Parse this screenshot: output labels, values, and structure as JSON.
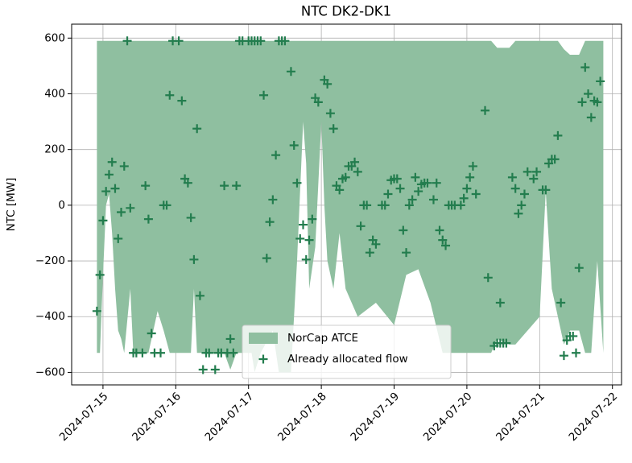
{
  "chart_data": {
    "type": "area",
    "title": "NTC DK2-DK1",
    "ylabel": "NTC [MW]",
    "xlim": [
      "2024-07-14 13:40",
      "2024-07-22 03:00"
    ],
    "ylim": [
      -645,
      650
    ],
    "xticks": [
      "2024-07-15",
      "2024-07-16",
      "2024-07-17",
      "2024-07-18",
      "2024-07-19",
      "2024-07-20",
      "2024-07-21",
      "2024-07-22"
    ],
    "yticks": [
      {
        "value": -600,
        "label": "−600"
      },
      {
        "value": -400,
        "label": "−400"
      },
      {
        "value": -200,
        "label": "−200"
      },
      0,
      200,
      400,
      600
    ],
    "grid": true,
    "legend": "lower center",
    "series": [
      {
        "name": "NorCap ATCE",
        "type": "area",
        "color": "#8fbfa0",
        "x": [
          "2024-07-14 22:00",
          "2024-07-14 23:00",
          "2024-07-15 00:00",
          "2024-07-15 01:00",
          "2024-07-15 02:00",
          "2024-07-15 03:00",
          "2024-07-15 04:00",
          "2024-07-15 05:00",
          "2024-07-15 06:00",
          "2024-07-15 07:00",
          "2024-07-15 09:00",
          "2024-07-15 10:00",
          "2024-07-15 15:00",
          "2024-07-15 18:00",
          "2024-07-15 20:00",
          "2024-07-15 22:00",
          "2024-07-16 05:00",
          "2024-07-16 06:00",
          "2024-07-16 07:00",
          "2024-07-16 16:00",
          "2024-07-16 18:00",
          "2024-07-16 20:00",
          "2024-07-17 01:00",
          "2024-07-17 02:00",
          "2024-07-17 04:00",
          "2024-07-17 08:00",
          "2024-07-17 10:00",
          "2024-07-17 14:00",
          "2024-07-17 16:00",
          "2024-07-17 18:00",
          "2024-07-17 19:00",
          "2024-07-17 20:00",
          "2024-07-17 22:00",
          "2024-07-18 00:00",
          "2024-07-18 01:00",
          "2024-07-18 02:00",
          "2024-07-18 04:00",
          "2024-07-18 06:00",
          "2024-07-18 08:00",
          "2024-07-18 12:00",
          "2024-07-18 18:00",
          "2024-07-19 00:00",
          "2024-07-19 04:00",
          "2024-07-19 08:00",
          "2024-07-19 12:00",
          "2024-07-19 16:00",
          "2024-07-20 08:00",
          "2024-07-20 10:00",
          "2024-07-20 14:00",
          "2024-07-20 16:00",
          "2024-07-21 00:00",
          "2024-07-21 02:00",
          "2024-07-21 04:00",
          "2024-07-21 06:00",
          "2024-07-21 08:00",
          "2024-07-21 10:00",
          "2024-07-21 13:00",
          "2024-07-21 15:00",
          "2024-07-21 17:00",
          "2024-07-21 19:00",
          "2024-07-21 21:00"
        ],
        "upper": [
          590,
          590,
          590,
          590,
          590,
          590,
          590,
          590,
          590,
          590,
          590,
          590,
          590,
          590,
          590,
          590,
          590,
          590,
          590,
          590,
          590,
          590,
          590,
          590,
          590,
          590,
          590,
          590,
          590,
          590,
          590,
          590,
          590,
          590,
          590,
          590,
          590,
          590,
          590,
          590,
          590,
          590,
          590,
          590,
          590,
          590,
          590,
          565,
          565,
          590,
          590,
          590,
          590,
          590,
          560,
          540,
          540,
          590,
          590,
          590,
          590
        ],
        "lower": [
          -530,
          -530,
          -250,
          0,
          40,
          -100,
          -300,
          -450,
          -480,
          -530,
          -300,
          -530,
          -530,
          -380,
          -450,
          -530,
          -530,
          -300,
          -530,
          -530,
          -590,
          -530,
          -530,
          -600,
          -530,
          -450,
          -600,
          -600,
          -200,
          300,
          150,
          -300,
          -150,
          300,
          0,
          -200,
          -300,
          -100,
          -300,
          -400,
          -350,
          -430,
          -250,
          -230,
          -350,
          -530,
          -530,
          -480,
          -500,
          -500,
          -400,
          50,
          -300,
          -400,
          -500,
          -450,
          -450,
          -530,
          -530,
          -200,
          -530
        ]
      },
      {
        "name": "Already allocated flow",
        "type": "scatter",
        "color": "#237d4e",
        "x": [
          "2024-07-14 22:00",
          "2024-07-14 23:00",
          "2024-07-15 00:00",
          "2024-07-15 01:00",
          "2024-07-15 02:00",
          "2024-07-15 03:00",
          "2024-07-15 04:00",
          "2024-07-15 05:00",
          "2024-07-15 06:00",
          "2024-07-15 07:00",
          "2024-07-15 08:00",
          "2024-07-15 09:00",
          "2024-07-15 10:00",
          "2024-07-15 11:00",
          "2024-07-15 13:00",
          "2024-07-15 14:00",
          "2024-07-15 15:00",
          "2024-07-15 16:00",
          "2024-07-15 17:00",
          "2024-07-15 19:00",
          "2024-07-15 20:00",
          "2024-07-15 21:00",
          "2024-07-15 22:00",
          "2024-07-15 23:00",
          "2024-07-16 01:00",
          "2024-07-16 02:00",
          "2024-07-16 03:00",
          "2024-07-16 04:00",
          "2024-07-16 05:00",
          "2024-07-16 06:00",
          "2024-07-16 07:00",
          "2024-07-16 08:00",
          "2024-07-16 09:00",
          "2024-07-16 10:00",
          "2024-07-16 11:00",
          "2024-07-16 13:00",
          "2024-07-16 14:00",
          "2024-07-16 15:00",
          "2024-07-16 16:00",
          "2024-07-16 17:00",
          "2024-07-16 18:00",
          "2024-07-16 19:00",
          "2024-07-16 20:00",
          "2024-07-16 21:00",
          "2024-07-16 22:00",
          "2024-07-17 00:00",
          "2024-07-17 01:00",
          "2024-07-17 02:00",
          "2024-07-17 03:00",
          "2024-07-17 04:00",
          "2024-07-17 05:00",
          "2024-07-17 06:00",
          "2024-07-17 07:00",
          "2024-07-17 08:00",
          "2024-07-17 09:00",
          "2024-07-17 10:00",
          "2024-07-17 11:00",
          "2024-07-17 12:00",
          "2024-07-17 14:00",
          "2024-07-17 15:00",
          "2024-07-17 16:00",
          "2024-07-17 17:00",
          "2024-07-17 18:00",
          "2024-07-17 19:00",
          "2024-07-17 20:00",
          "2024-07-17 21:00",
          "2024-07-17 22:00",
          "2024-07-17 23:00",
          "2024-07-18 01:00",
          "2024-07-18 02:00",
          "2024-07-18 03:00",
          "2024-07-18 04:00",
          "2024-07-18 05:00",
          "2024-07-18 06:00",
          "2024-07-18 07:00",
          "2024-07-18 08:00",
          "2024-07-18 09:00",
          "2024-07-18 10:00",
          "2024-07-18 11:00",
          "2024-07-18 12:00",
          "2024-07-18 13:00",
          "2024-07-18 14:00",
          "2024-07-18 15:00",
          "2024-07-18 16:00",
          "2024-07-18 17:00",
          "2024-07-18 18:00",
          "2024-07-18 20:00",
          "2024-07-18 21:00",
          "2024-07-18 22:00",
          "2024-07-18 23:00",
          "2024-07-19 00:00",
          "2024-07-19 01:00",
          "2024-07-19 02:00",
          "2024-07-19 03:00",
          "2024-07-19 04:00",
          "2024-07-19 05:00",
          "2024-07-19 06:00",
          "2024-07-19 07:00",
          "2024-07-19 08:00",
          "2024-07-19 09:00",
          "2024-07-19 10:00",
          "2024-07-19 11:00",
          "2024-07-19 13:00",
          "2024-07-19 14:00",
          "2024-07-19 15:00",
          "2024-07-19 16:00",
          "2024-07-19 17:00",
          "2024-07-19 18:00",
          "2024-07-19 19:00",
          "2024-07-19 20:00",
          "2024-07-19 22:00",
          "2024-07-19 23:00",
          "2024-07-20 00:00",
          "2024-07-20 01:00",
          "2024-07-20 02:00",
          "2024-07-20 03:00",
          "2024-07-20 06:00",
          "2024-07-20 07:00",
          "2024-07-20 09:00",
          "2024-07-20 10:00",
          "2024-07-20 11:00",
          "2024-07-20 11:00",
          "2024-07-20 12:00",
          "2024-07-20 13:00",
          "2024-07-20 15:00",
          "2024-07-20 16:00",
          "2024-07-20 17:00",
          "2024-07-20 18:00",
          "2024-07-20 19:00",
          "2024-07-20 20:00",
          "2024-07-20 22:00",
          "2024-07-20 23:00",
          "2024-07-21 01:00",
          "2024-07-21 02:00",
          "2024-07-21 03:00",
          "2024-07-21 04:00",
          "2024-07-21 05:00",
          "2024-07-21 06:00",
          "2024-07-21 07:00",
          "2024-07-21 08:00",
          "2024-07-21 09:00",
          "2024-07-21 10:00",
          "2024-07-21 11:00",
          "2024-07-21 12:00",
          "2024-07-21 13:00",
          "2024-07-21 14:00",
          "2024-07-21 15:00",
          "2024-07-21 16:00",
          "2024-07-21 17:00",
          "2024-07-21 18:00",
          "2024-07-21 19:00",
          "2024-07-21 20:00"
        ],
        "values": [
          -380,
          -250,
          -55,
          50,
          110,
          155,
          60,
          -120,
          -25,
          140,
          590,
          -10,
          -530,
          -530,
          -530,
          70,
          -50,
          -460,
          -530,
          -530,
          0,
          0,
          395,
          590,
          590,
          375,
          95,
          80,
          -45,
          -195,
          275,
          -325,
          -590,
          -530,
          -530,
          -590,
          -530,
          -530,
          70,
          -530,
          -480,
          -530,
          70,
          590,
          590,
          590,
          590,
          590,
          590,
          590,
          395,
          -190,
          -60,
          20,
          180,
          590,
          590,
          590,
          480,
          215,
          80,
          -120,
          -70,
          -195,
          -125,
          -50,
          385,
          370,
          450,
          435,
          330,
          275,
          70,
          55,
          95,
          100,
          140,
          140,
          155,
          120,
          -75,
          0,
          0,
          -170,
          -125,
          -140,
          0,
          0,
          40,
          90,
          95,
          95,
          60,
          -90,
          -170,
          0,
          20,
          100,
          50,
          75,
          80,
          80,
          20,
          80,
          -90,
          -125,
          -145,
          0,
          0,
          0,
          0,
          25,
          60,
          100,
          140,
          40,
          340,
          -260,
          -505,
          -495,
          -350,
          -495,
          -495,
          -495,
          100,
          60,
          -30,
          0,
          40,
          120,
          95,
          120,
          55,
          55,
          150,
          165,
          165,
          250,
          -350,
          -540,
          -485,
          -470,
          -470,
          -530,
          -225,
          370,
          495,
          400,
          315,
          375,
          370,
          445
        ]
      }
    ]
  }
}
